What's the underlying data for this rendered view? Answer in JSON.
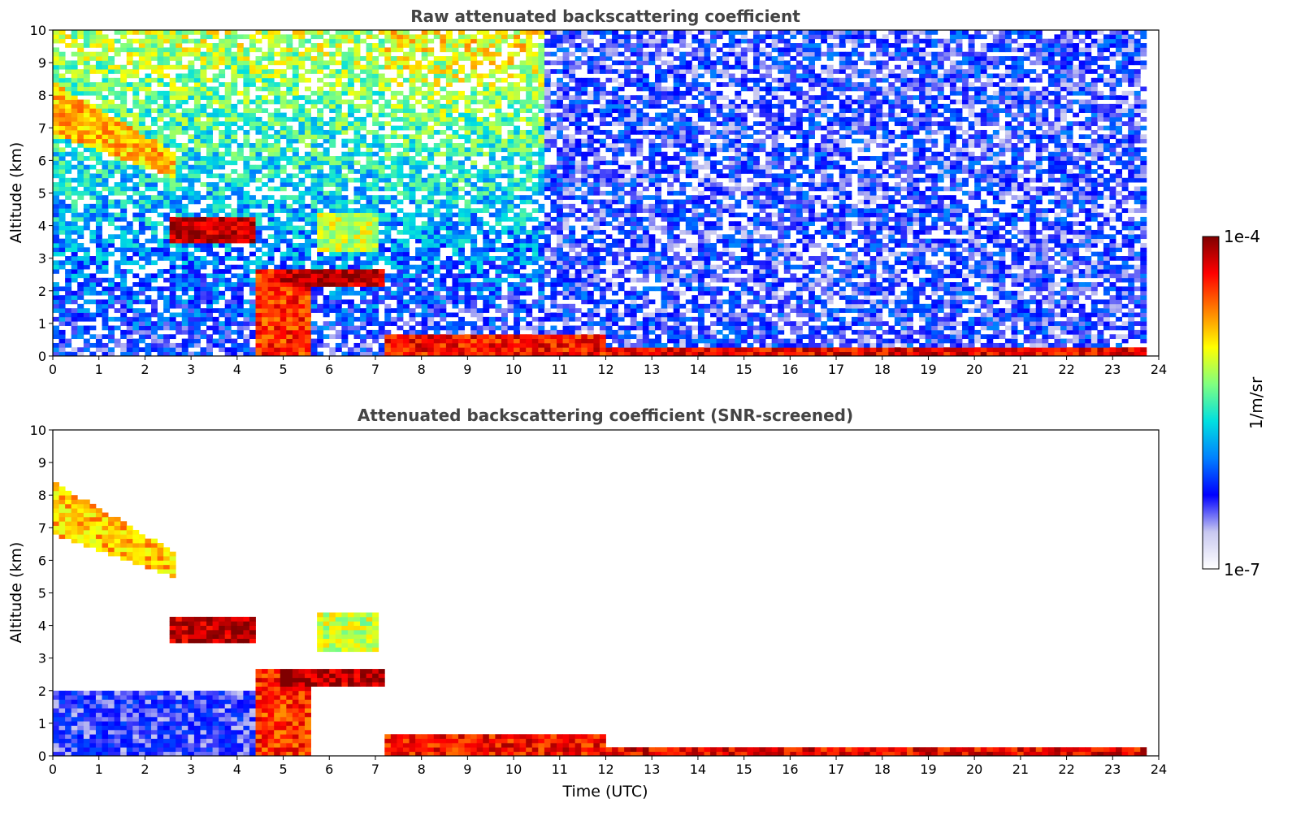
{
  "chart_data": [
    {
      "type": "heatmap",
      "title": "Raw attenuated backscattering coefficient",
      "xlabel": "",
      "ylabel": "Altitude (km)",
      "xlim": [
        0,
        24
      ],
      "ylim": [
        0,
        10
      ],
      "xticks": [
        0,
        1,
        2,
        3,
        4,
        5,
        6,
        7,
        8,
        9,
        10,
        11,
        12,
        13,
        14,
        15,
        16,
        17,
        18,
        19,
        20,
        21,
        22,
        23,
        24
      ],
      "yticks": [
        0,
        1,
        2,
        3,
        4,
        5,
        6,
        7,
        8,
        9,
        10
      ],
      "data_end_x": 23.7,
      "features": [
        {
          "name": "cirrus",
          "x": [
            0.0,
            2.6
          ],
          "y_top": [
            8.4,
            6.3
          ],
          "y_bottom": [
            6.8,
            5.5
          ],
          "level": 0.72
        },
        {
          "name": "mid-cloud",
          "x": [
            2.5,
            4.4
          ],
          "y": [
            3.5,
            4.2
          ],
          "level": 0.95
        },
        {
          "name": "mid-cloud",
          "x": [
            5.8,
            7.1
          ],
          "y": [
            3.2,
            4.4
          ],
          "level": 0.62
        },
        {
          "name": "cloud-layer",
          "x": [
            5.0,
            7.2
          ],
          "y": [
            2.2,
            2.7
          ],
          "level": 0.95
        },
        {
          "name": "low-cloud",
          "x": [
            4.4,
            5.6
          ],
          "y": [
            0.0,
            2.7
          ],
          "level": 0.85
        },
        {
          "name": "boundary-layer",
          "x": [
            7.2,
            12.0
          ],
          "y": [
            0.0,
            0.6
          ],
          "level": 0.88
        },
        {
          "name": "boundary-layer",
          "x": [
            12.0,
            23.7
          ],
          "y": [
            0.0,
            0.2
          ],
          "level": 0.9
        }
      ]
    },
    {
      "type": "heatmap",
      "title": "Attenuated backscattering coefficient (SNR-screened)",
      "xlabel": "Time (UTC)",
      "ylabel": "Altitude (km)",
      "xlim": [
        0,
        24
      ],
      "ylim": [
        0,
        10
      ],
      "xticks": [
        0,
        1,
        2,
        3,
        4,
        5,
        6,
        7,
        8,
        9,
        10,
        11,
        12,
        13,
        14,
        15,
        16,
        17,
        18,
        19,
        20,
        21,
        22,
        23,
        24
      ],
      "yticks": [
        0,
        1,
        2,
        3,
        4,
        5,
        6,
        7,
        8,
        9,
        10
      ],
      "data_end_x": 23.7,
      "features": [
        {
          "name": "cirrus",
          "x": [
            0.0,
            2.6
          ],
          "y_top": [
            8.4,
            6.3
          ],
          "y_bottom": [
            6.8,
            5.5
          ],
          "level": 0.72
        },
        {
          "name": "mid-cloud",
          "x": [
            2.5,
            4.4
          ],
          "y": [
            3.5,
            4.2
          ],
          "level": 0.95
        },
        {
          "name": "mid-cloud",
          "x": [
            5.8,
            7.1
          ],
          "y": [
            3.2,
            4.4
          ],
          "level": 0.62
        },
        {
          "name": "cloud-layer",
          "x": [
            5.0,
            7.2
          ],
          "y": [
            2.2,
            2.7
          ],
          "level": 0.95
        },
        {
          "name": "low-cloud",
          "x": [
            4.4,
            5.6
          ],
          "y": [
            0.0,
            2.7
          ],
          "level": 0.85
        },
        {
          "name": "aerosol-layer",
          "x": [
            0.0,
            4.4
          ],
          "y": [
            0.0,
            2.0
          ],
          "level": 0.2
        },
        {
          "name": "boundary-layer",
          "x": [
            7.2,
            12.0
          ],
          "y": [
            0.0,
            0.6
          ],
          "level": 0.88
        },
        {
          "name": "boundary-layer",
          "x": [
            12.0,
            23.7
          ],
          "y": [
            0.0,
            0.2
          ],
          "level": 0.9
        }
      ]
    }
  ],
  "colorbar": {
    "label": "1/m/sr",
    "max_label": "1e-4",
    "min_label": "1e-7",
    "colormap": [
      "#ffffff",
      "#c8c8f0",
      "#0000ff",
      "#0080ff",
      "#00e0e0",
      "#80ff80",
      "#ffff00",
      "#ff8000",
      "#ff0000",
      "#800000"
    ]
  }
}
